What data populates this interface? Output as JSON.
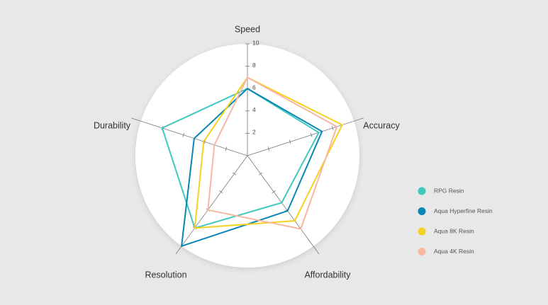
{
  "chart_data": {
    "type": "radar",
    "categories": [
      "Speed",
      "Accuracy",
      "Affordability",
      "Resolution",
      "Durability"
    ],
    "rlim": [
      0,
      10
    ],
    "rticks": [
      2,
      4,
      6,
      8,
      10
    ],
    "legend": "right",
    "series": [
      {
        "name": "RPG Resin",
        "color": "#3fc8c0",
        "values": [
          6,
          6.7,
          5.2,
          8,
          8
        ]
      },
      {
        "name": "Aqua Hyperfine Resin",
        "color": "#0a86b5",
        "values": [
          6,
          7,
          6.1,
          10,
          5
        ]
      },
      {
        "name": "Aqua 8K Resin",
        "color": "#f5d21f",
        "values": [
          7,
          8.9,
          7.2,
          8,
          4.1
        ]
      },
      {
        "name": "Aqua 4K Resin",
        "color": "#f7b7a0",
        "values": [
          7,
          8.4,
          8.1,
          6,
          3.1
        ]
      }
    ]
  }
}
